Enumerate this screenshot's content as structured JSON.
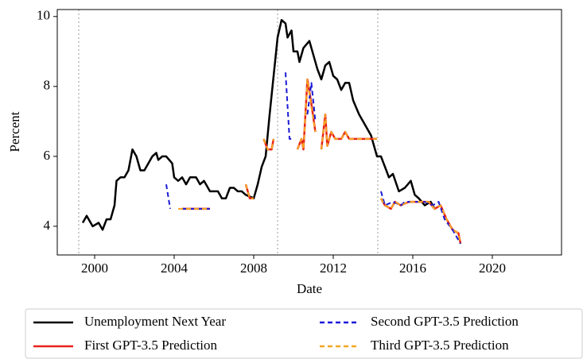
{
  "chart_data": {
    "type": "line",
    "x_label": "Date",
    "y_label": "Percent",
    "xlim": [
      1998.12,
      2023.48
    ],
    "ylim": [
      3.18,
      10.2
    ],
    "xticks": [
      2000,
      2004,
      2008,
      2012,
      2016,
      2020
    ],
    "yticks": [
      4,
      6,
      8,
      10
    ],
    "vlines": [
      1999.2,
      2009.2,
      2014.24
    ],
    "legend": "bottom",
    "series": [
      {
        "name": "Unemployment Next Year",
        "color": "#000000",
        "dash": false,
        "x": [
          1999.4,
          1999.6,
          1999.9,
          2000.2,
          2000.4,
          2000.6,
          2000.8,
          2001.0,
          2001.1,
          2001.3,
          2001.5,
          2001.7,
          2001.9,
          2002.1,
          2002.3,
          2002.5,
          2002.7,
          2002.9,
          2003.1,
          2003.2,
          2003.4,
          2003.6,
          2003.9,
          2004.0,
          2004.2,
          2004.4,
          2004.6,
          2004.8,
          2005.1,
          2005.3,
          2005.5,
          2005.8,
          2006.2,
          2006.4,
          2006.6,
          2006.8,
          2007.0,
          2007.2,
          2007.4,
          2007.6,
          2008.0,
          2008.2,
          2008.4,
          2008.6,
          2008.8,
          2009.0,
          2009.2,
          2009.4,
          2009.6,
          2009.7,
          2009.9,
          2010.0,
          2010.2,
          2010.3,
          2010.5,
          2010.8,
          2011.0,
          2011.2,
          2011.4,
          2011.6,
          2011.8,
          2012.0,
          2012.2,
          2012.4,
          2012.6,
          2012.8,
          2013.0,
          2013.3,
          2013.6,
          2013.9,
          2014.2,
          2014.4,
          2014.6,
          2014.8,
          2015.0,
          2015.3,
          2015.6,
          2015.9,
          2016.1,
          2016.3,
          2016.6,
          2016.9,
          2017.1
        ],
        "values": [
          4.1,
          4.3,
          4.0,
          4.1,
          3.9,
          4.2,
          4.2,
          4.6,
          5.3,
          5.4,
          5.4,
          5.6,
          6.2,
          6.0,
          5.6,
          5.6,
          5.8,
          6.0,
          6.1,
          5.9,
          6.0,
          6.0,
          5.8,
          5.4,
          5.3,
          5.4,
          5.2,
          5.4,
          5.4,
          5.2,
          5.3,
          5.0,
          5.0,
          4.8,
          4.8,
          5.1,
          5.1,
          5.0,
          5.0,
          4.9,
          4.8,
          5.2,
          5.7,
          6.0,
          7.2,
          8.3,
          9.4,
          9.9,
          9.8,
          9.4,
          9.6,
          9.0,
          9.0,
          8.7,
          9.1,
          9.3,
          8.9,
          8.5,
          8.2,
          8.6,
          8.7,
          8.3,
          8.2,
          7.9,
          8.1,
          8.1,
          7.6,
          7.2,
          6.9,
          6.6,
          6.0,
          6.0,
          5.7,
          5.4,
          5.5,
          5.0,
          5.1,
          5.3,
          4.9,
          4.8,
          4.6,
          4.7,
          4.5
        ]
      },
      {
        "name": "First GPT-3.5 Prediction",
        "color": "#e8231b",
        "dash": false,
        "x": [
          2004.4,
          2005.0,
          2005.8,
          null,
          2007.6,
          2007.8,
          2008.0,
          null,
          2008.5,
          2008.7,
          2008.9,
          2009.0,
          null,
          2010.2,
          2010.4,
          2010.5,
          2010.7,
          2010.9,
          2011.1,
          null,
          2011.4,
          2011.6,
          2011.7,
          2011.9,
          2012.1,
          2012.4,
          2012.6,
          2012.8,
          2013.1,
          2013.5,
          2014.2,
          null,
          2014.4,
          2014.6,
          2014.9,
          2015.1,
          2015.4,
          2015.8,
          2016.0,
          2016.4,
          2016.8,
          2017.1,
          2017.4,
          2017.7,
          2018.0,
          2018.3,
          2018.4
        ],
        "values": [
          4.5,
          4.5,
          4.5,
          null,
          5.2,
          4.8,
          4.8,
          null,
          6.5,
          6.2,
          6.2,
          6.5,
          null,
          6.2,
          6.5,
          6.2,
          8.2,
          7.5,
          6.7,
          null,
          6.2,
          7.2,
          6.3,
          6.7,
          6.5,
          6.5,
          6.7,
          6.5,
          6.5,
          6.5,
          6.5,
          null,
          4.8,
          4.6,
          4.5,
          4.7,
          4.6,
          4.7,
          4.7,
          4.7,
          4.7,
          4.5,
          4.6,
          4.2,
          3.9,
          3.8,
          3.5
        ]
      },
      {
        "name": "Second GPT-3.5 Prediction",
        "color": "#1a1ad6",
        "dash": true,
        "x": [
          2003.6,
          2003.8,
          null,
          2004.4,
          2005.8,
          null,
          2009.6,
          2009.8,
          2010.0,
          null,
          2010.7,
          2010.9,
          2011.1,
          null,
          2014.4,
          2014.6,
          2015.0,
          2015.4,
          2015.6,
          2016.0,
          2016.6,
          2017.0,
          2017.3,
          2017.6,
          2018.0,
          2018.4
        ],
        "values": [
          5.2,
          4.5,
          null,
          4.5,
          4.5,
          null,
          8.4,
          6.5,
          6.5,
          null,
          7.2,
          8.1,
          7.0,
          null,
          5.0,
          4.6,
          4.7,
          4.6,
          4.7,
          4.7,
          4.7,
          4.6,
          4.7,
          4.2,
          3.9,
          3.5
        ]
      },
      {
        "name": "Third GPT-3.5 Prediction",
        "color": "#f5a623",
        "dash": true,
        "x": [
          2004.2,
          2005.0,
          2005.8,
          null,
          2007.6,
          2007.8,
          2008.0,
          null,
          2008.5,
          2008.7,
          2008.9,
          2009.0,
          null,
          2010.2,
          2010.4,
          2010.5,
          2010.7,
          2010.9,
          2011.1,
          null,
          2011.4,
          2011.6,
          2011.7,
          2011.9,
          2012.1,
          2012.4,
          2012.6,
          2012.8,
          2013.1,
          2013.5,
          2014.2,
          null,
          2014.4,
          2014.6,
          2014.9,
          2015.1,
          2015.4,
          2015.8,
          2016.0,
          2016.4,
          2016.8,
          2017.1,
          2017.4,
          2017.7,
          2018.0,
          2018.3,
          2018.4
        ],
        "values": [
          4.5,
          4.5,
          4.5,
          null,
          5.2,
          4.8,
          4.8,
          null,
          6.5,
          6.2,
          6.2,
          6.5,
          null,
          6.2,
          6.5,
          6.2,
          8.2,
          7.4,
          6.7,
          null,
          6.2,
          7.2,
          6.3,
          6.7,
          6.5,
          6.5,
          6.7,
          6.5,
          6.5,
          6.5,
          6.5,
          null,
          4.8,
          4.6,
          4.5,
          4.7,
          4.6,
          4.7,
          4.7,
          4.7,
          4.7,
          4.5,
          4.6,
          4.2,
          3.9,
          3.8,
          3.5
        ]
      }
    ]
  }
}
